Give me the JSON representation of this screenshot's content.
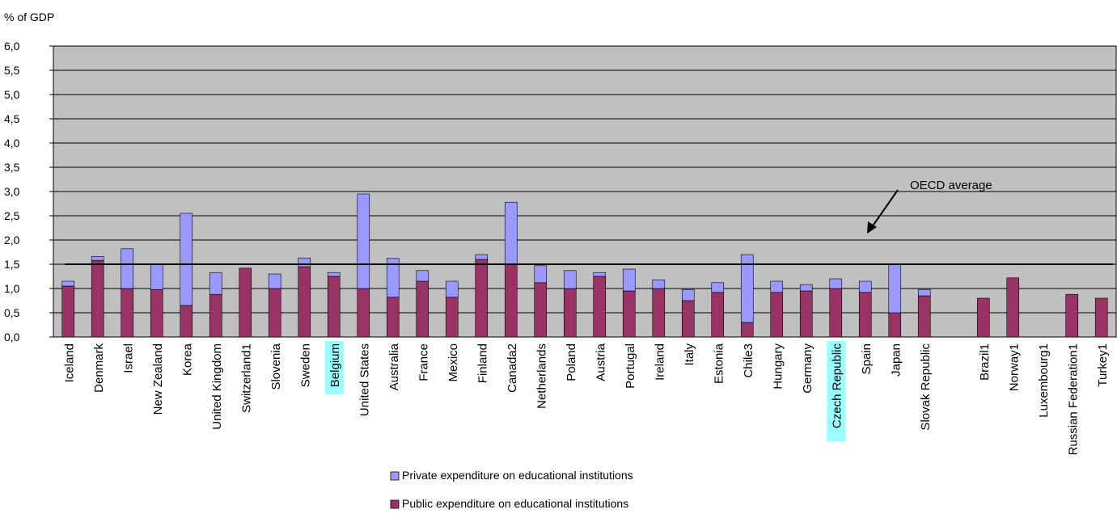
{
  "chart_data": {
    "type": "bar",
    "stacked": true,
    "ylabel": "% of GDP",
    "ylim": [
      0,
      6
    ],
    "yticks": [
      "0,0",
      "0,5",
      "1,0",
      "1,5",
      "2,0",
      "2,5",
      "3,0",
      "3,5",
      "4,0",
      "4,5",
      "5,0",
      "5,5",
      "6,0"
    ],
    "grid": true,
    "plot_background": "#c0c0c0",
    "categories": [
      "Iceland",
      "Denmark",
      "Israel",
      "New Zealand",
      "Korea",
      "United Kingdom",
      "Switzerland1",
      "Slovenia",
      "Sweden",
      "Belgium",
      "United States",
      "Australia",
      "France",
      "Mexico",
      "Finland",
      "Canada2",
      "Netherlands",
      "Poland",
      "Austria",
      "Portugal",
      "Ireland",
      "Italy",
      "Estonia",
      "Chile3",
      "Hungary",
      "Germany",
      "Czech Republic",
      "Spain",
      "Japan",
      "Slovak Republic",
      "",
      "Brazil1",
      "Norway1",
      "Luxembourg1",
      "Russian Federation1",
      "Turkey1"
    ],
    "highlighted_categories": [
      "Belgium",
      "Czech Republic"
    ],
    "highlight_color": "#99ffff",
    "series": [
      {
        "name": "Public expenditure on educational institutions",
        "color": "#993366",
        "values": [
          1.05,
          1.58,
          1.0,
          0.98,
          0.65,
          0.88,
          1.42,
          1.0,
          1.45,
          1.25,
          1.0,
          0.82,
          1.15,
          0.82,
          1.6,
          1.5,
          1.12,
          1.0,
          1.25,
          0.95,
          1.0,
          0.75,
          0.92,
          0.3,
          0.92,
          0.95,
          1.0,
          0.92,
          0.5,
          0.85,
          null,
          0.8,
          1.22,
          null,
          0.88,
          0.8
        ]
      },
      {
        "name": "Private expenditure on educational institutions",
        "color": "#9999ff",
        "values": [
          0.1,
          0.08,
          0.82,
          0.52,
          1.9,
          0.45,
          0.0,
          0.3,
          0.18,
          0.08,
          1.95,
          0.8,
          0.22,
          0.33,
          0.1,
          1.28,
          0.35,
          0.37,
          0.08,
          0.45,
          0.18,
          0.23,
          0.2,
          1.4,
          0.23,
          0.13,
          0.2,
          0.23,
          1.0,
          0.13,
          null,
          null,
          null,
          null,
          null,
          null
        ]
      }
    ],
    "reference_line": {
      "label": "OECD average",
      "value": 1.5
    }
  }
}
